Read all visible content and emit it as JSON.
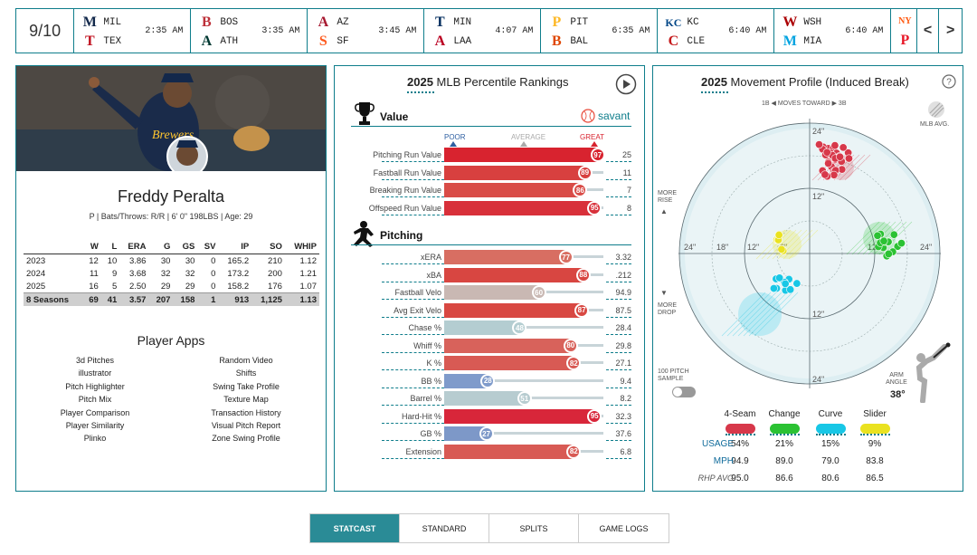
{
  "scoreboard": {
    "date": "9/10",
    "games": [
      {
        "away": "MIL",
        "home": "TEX",
        "time": "2:35 AM",
        "away_logo": "M",
        "home_logo": "T",
        "away_color": "#12284b",
        "home_color": "#c0111f"
      },
      {
        "away": "BOS",
        "home": "ATH",
        "time": "3:35 AM",
        "away_logo": "B",
        "home_logo": "A",
        "away_color": "#bd3039",
        "home_color": "#003831"
      },
      {
        "away": "AZ",
        "home": "SF",
        "time": "3:45 AM",
        "away_logo": "A",
        "home_logo": "S",
        "away_color": "#a71930",
        "home_color": "#fd5a1e"
      },
      {
        "away": "MIN",
        "home": "LAA",
        "time": "4:07 AM",
        "away_logo": "T",
        "home_logo": "A",
        "away_color": "#002b5c",
        "home_color": "#ba0021"
      },
      {
        "away": "PIT",
        "home": "BAL",
        "time": "6:35 AM",
        "away_logo": "P",
        "home_logo": "B",
        "away_color": "#fdb827",
        "home_color": "#df4601"
      },
      {
        "away": "KC",
        "home": "CLE",
        "time": "6:40 AM",
        "away_logo": "KC",
        "home_logo": "C",
        "away_color": "#004687",
        "home_color": "#c5191b"
      },
      {
        "away": "WSH",
        "home": "MIA",
        "time": "6:40 AM",
        "away_logo": "W",
        "home_logo": "M",
        "away_color": "#ab0003",
        "home_color": "#00a3e0"
      }
    ],
    "next_logo_top": "NY",
    "next_logo_bottom": "P",
    "prev_label": "<",
    "next_label": ">"
  },
  "player": {
    "name": "Freddy Peralta",
    "info": "P | Bats/Throws: R/R | 6' 0\" 198LBS | Age: 29",
    "stat_headers": [
      "",
      "W",
      "L",
      "ERA",
      "G",
      "GS",
      "SV",
      "IP",
      "SO",
      "WHIP"
    ],
    "stat_rows": [
      [
        "2023",
        "12",
        "10",
        "3.86",
        "30",
        "30",
        "0",
        "165.2",
        "210",
        "1.12"
      ],
      [
        "2024",
        "11",
        "9",
        "3.68",
        "32",
        "32",
        "0",
        "173.2",
        "200",
        "1.21"
      ],
      [
        "2025",
        "16",
        "5",
        "2.50",
        "29",
        "29",
        "0",
        "158.2",
        "176",
        "1.07"
      ]
    ],
    "stat_total": [
      "8 Seasons",
      "69",
      "41",
      "3.57",
      "207",
      "158",
      "1",
      "913",
      "1,125",
      "1.13"
    ],
    "apps_title": "Player Apps",
    "apps_left": [
      "3d Pitches",
      "illustrator",
      "Pitch Highlighter",
      "Pitch Mix",
      "Player Comparison",
      "Player Similarity",
      "Plinko"
    ],
    "apps_right": [
      "Random Video",
      "Shifts",
      "Swing Take Profile",
      "Texture Map",
      "Transaction History",
      "Visual Pitch Report",
      "Zone Swing Profile"
    ]
  },
  "percentiles": {
    "title_year": "2025",
    "title_rest": "MLB Percentile Rankings",
    "value_section": "Value",
    "brand": "savant",
    "poor": "POOR",
    "average": "AVERAGE",
    "great": "GREAT",
    "pitching_section": "Pitching",
    "value_rows": [
      {
        "label": "Pitching Run Value",
        "pct": 97,
        "value": "25",
        "color": "#d8232f"
      },
      {
        "label": "Fastball Run Value",
        "pct": 89,
        "value": "11",
        "color": "#d8403f"
      },
      {
        "label": "Breaking Run Value",
        "pct": 86,
        "value": "7",
        "color": "#d94c47"
      },
      {
        "label": "Offspeed Run Value",
        "pct": 95,
        "value": "8",
        "color": "#d8303a"
      }
    ],
    "pitching_rows": [
      {
        "label": "xERA",
        "pct": 77,
        "value": "3.32",
        "color": "#d86e62"
      },
      {
        "label": "xBA",
        "pct": 88,
        "value": ".212",
        "color": "#d84641"
      },
      {
        "label": "Fastball Velo",
        "pct": 60,
        "value": "94.9",
        "color": "#c9b8b3"
      },
      {
        "label": "Avg Exit Velo",
        "pct": 87,
        "value": "87.5",
        "color": "#d84842"
      },
      {
        "label": "Chase %",
        "pct": 48,
        "value": "28.4",
        "color": "#b4cdd1"
      },
      {
        "label": "Whiff %",
        "pct": 80,
        "value": "29.8",
        "color": "#d8625b"
      },
      {
        "label": "K %",
        "pct": 82,
        "value": "27.1",
        "color": "#d85a54"
      },
      {
        "label": "BB %",
        "pct": 28,
        "value": "9.4",
        "color": "#7f9bcb"
      },
      {
        "label": "Barrel %",
        "pct": 51,
        "value": "8.2",
        "color": "#b7ccd0"
      },
      {
        "label": "Hard-Hit %",
        "pct": 95,
        "value": "32.3",
        "color": "#d8263a"
      },
      {
        "label": "GB %",
        "pct": 27,
        "value": "37.6",
        "color": "#7d98c8"
      },
      {
        "label": "Extension",
        "pct": 82,
        "value": "6.8",
        "color": "#d85a54"
      }
    ]
  },
  "movement": {
    "title_year": "2025",
    "title_rest": "Movement Profile (Induced Break)",
    "help": "?",
    "moves_toward": "1B ◀ MOVES TOWARD ▶ 3B",
    "mlb_avg": "MLB AVG.",
    "more_rise": "MORE RISE",
    "more_drop": "MORE DROP",
    "sample_label": "100 PITCH SAMPLE",
    "arm_angle_label": "ARM ANGLE",
    "arm_angle": "38°",
    "ring_labels": [
      "24\"",
      "12\"",
      "12\"",
      "24\"",
      "24\"",
      "18\"",
      "12\"",
      "6\"",
      "12\"",
      "24\""
    ],
    "pitches": [
      {
        "name": "4-Seam",
        "color": "#d7384a",
        "usage": "54%",
        "mph": "94.9",
        "rhp": "95.0"
      },
      {
        "name": "Change",
        "color": "#2bc233",
        "usage": "21%",
        "mph": "89.0",
        "rhp": "86.6"
      },
      {
        "name": "Curve",
        "color": "#18c7e6",
        "usage": "15%",
        "mph": "79.0",
        "rhp": "80.6"
      },
      {
        "name": "Slider",
        "color": "#eae220",
        "usage": "9%",
        "mph": "83.8",
        "rhp": "86.5"
      }
    ],
    "row_usage": "USAGE",
    "row_mph": "MPH",
    "row_rhp": "RHP AVG"
  },
  "tabs": [
    "STATCAST",
    "STANDARD",
    "SPLITS",
    "GAME LOGS"
  ]
}
